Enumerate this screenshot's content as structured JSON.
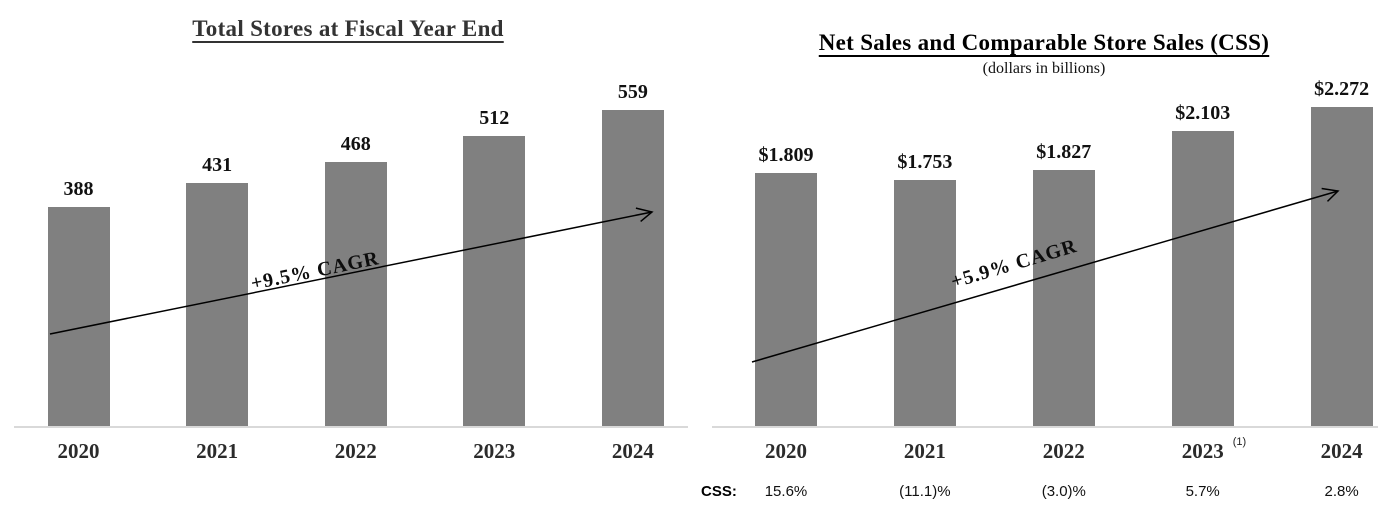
{
  "chart_data": [
    {
      "type": "bar",
      "title": "Total Stores at Fiscal Year End",
      "categories": [
        "2020",
        "2021",
        "2022",
        "2023",
        "2024"
      ],
      "values": [
        388,
        431,
        468,
        512,
        559
      ],
      "bar_labels": [
        "388",
        "431",
        "468",
        "512",
        "559"
      ],
      "annotation": "+9.5% CAGR",
      "xlabel": "",
      "ylabel": "",
      "ylim": [
        0,
        620
      ],
      "grid": false,
      "legend": "none"
    },
    {
      "type": "bar",
      "title": "Net Sales and Comparable Store Sales (CSS)",
      "subtitle": "(dollars in billions)",
      "categories": [
        "2020",
        "2021",
        "2022",
        "2023",
        "2024"
      ],
      "category_footnotes": [
        "",
        "",
        "",
        "(1)",
        ""
      ],
      "values": [
        1.809,
        1.753,
        1.827,
        2.103,
        2.272
      ],
      "bar_labels": [
        "$1.809",
        "$1.753",
        "$1.827",
        "$2.103",
        "$2.272"
      ],
      "annotation": "+5.9% CAGR",
      "css_row": {
        "label": "CSS:",
        "values": [
          "15.6%",
          "(11.1)%",
          "(3.0)%",
          "5.7%",
          "2.8%"
        ]
      },
      "xlabel": "",
      "ylabel": "",
      "ylim": [
        0,
        2.5
      ],
      "grid": false,
      "legend": "none"
    }
  ],
  "colors": {
    "bar": "#808080",
    "axis": "#d9d9d9",
    "arrow": "#000000",
    "text": "#1a1a1a",
    "left_title": "#333333",
    "right_title": "#000000"
  }
}
